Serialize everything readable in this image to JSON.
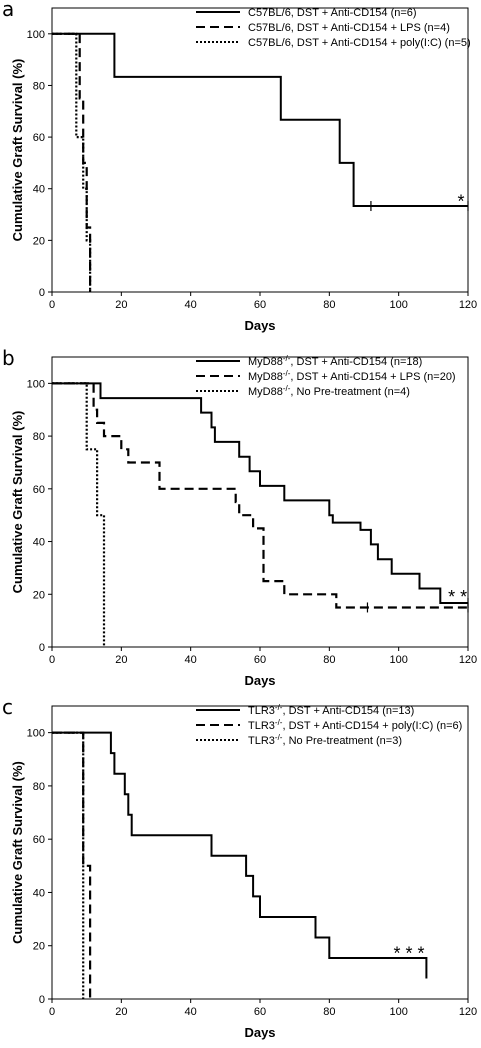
{
  "chart_data": [
    {
      "type": "line",
      "panel_label": "a",
      "xlabel": "Days",
      "ylabel": "Cumulative Graft Survival (%)",
      "xlim": [
        0,
        120
      ],
      "ylim": [
        0,
        110
      ],
      "xticks": [
        0,
        20,
        40,
        60,
        80,
        100,
        120
      ],
      "yticks": [
        0,
        20,
        40,
        60,
        80,
        100
      ],
      "x_tick_labels": [
        "0",
        "20",
        "40",
        "60",
        "80",
        "100",
        "120"
      ],
      "y_tick_labels": [
        "0",
        "20",
        "40",
        "60",
        "80",
        "100"
      ],
      "legend_position": "top-right",
      "annotation": {
        "text": "*",
        "x": 118,
        "y": 35
      },
      "series": [
        {
          "name": "C57BL/6, DST + Anti-CD154 (n=6)",
          "style": "solid",
          "steps": [
            [
              0,
              100
            ],
            [
              18,
              100
            ],
            [
              18,
              83.3
            ],
            [
              66,
              83.3
            ],
            [
              66,
              66.7
            ],
            [
              83,
              66.7
            ],
            [
              83,
              50
            ],
            [
              87,
              50
            ],
            [
              87,
              33.3
            ],
            [
              120,
              33.3
            ]
          ],
          "censored": [
            [
              92,
              33.3
            ],
            [
              120,
              33.3
            ]
          ]
        },
        {
          "name": "C57BL/6, DST + Anti-CD154 + LPS (n=4)",
          "style": "dashed",
          "steps": [
            [
              0,
              100
            ],
            [
              8,
              100
            ],
            [
              8,
              75
            ],
            [
              9,
              75
            ],
            [
              9,
              50
            ],
            [
              10,
              50
            ],
            [
              10,
              25
            ],
            [
              11,
              25
            ],
            [
              11,
              0
            ]
          ],
          "censored": []
        },
        {
          "name": "C57BL/6, DST + Anti-CD154 + poly(I:C) (n=5)",
          "style": "dotted",
          "steps": [
            [
              0,
              100
            ],
            [
              7,
              100
            ],
            [
              7,
              60
            ],
            [
              9,
              60
            ],
            [
              9,
              40
            ],
            [
              10,
              40
            ],
            [
              10,
              20
            ],
            [
              11,
              20
            ],
            [
              11,
              0
            ]
          ],
          "censored": []
        }
      ]
    },
    {
      "type": "line",
      "panel_label": "b",
      "xlabel": "Days",
      "ylabel": "Cumulative Graft Survival (%)",
      "xlim": [
        0,
        120
      ],
      "ylim": [
        0,
        110
      ],
      "xticks": [
        0,
        20,
        40,
        60,
        80,
        100,
        120
      ],
      "yticks": [
        0,
        20,
        40,
        60,
        80,
        100
      ],
      "x_tick_labels": [
        "0",
        "20",
        "40",
        "60",
        "80",
        "100",
        "120"
      ],
      "y_tick_labels": [
        "0",
        "20",
        "40",
        "60",
        "80",
        "100"
      ],
      "legend_position": "top-right",
      "annotation": {
        "text": "* *",
        "x": 117,
        "y": 19
      },
      "series": [
        {
          "name": "MyD88-/-, DST + Anti-CD154 (n=18)",
          "style": "solid",
          "steps": [
            [
              0,
              100
            ],
            [
              14,
              100
            ],
            [
              14,
              94.4
            ],
            [
              43,
              94.4
            ],
            [
              43,
              88.9
            ],
            [
              46,
              88.9
            ],
            [
              46,
              83.3
            ],
            [
              47,
              83.3
            ],
            [
              47,
              77.8
            ],
            [
              54,
              77.8
            ],
            [
              54,
              72.2
            ],
            [
              57,
              72.2
            ],
            [
              57,
              66.7
            ],
            [
              60,
              66.7
            ],
            [
              60,
              61.1
            ],
            [
              67,
              61.1
            ],
            [
              67,
              55.6
            ],
            [
              80,
              55.6
            ],
            [
              80,
              50
            ],
            [
              81,
              50
            ],
            [
              81,
              47.2
            ],
            [
              89,
              47.2
            ],
            [
              89,
              44.4
            ],
            [
              92,
              44.4
            ],
            [
              92,
              38.9
            ],
            [
              94,
              38.9
            ],
            [
              94,
              33.3
            ],
            [
              98,
              33.3
            ],
            [
              98,
              27.8
            ],
            [
              106,
              27.8
            ],
            [
              106,
              22.2
            ],
            [
              112,
              22.2
            ],
            [
              112,
              16.7
            ],
            [
              120,
              16.7
            ]
          ],
          "censored": [
            [
              120,
              16.7
            ]
          ]
        },
        {
          "name": "MyD88-/-, DST + Anti-CD154 + LPS (n=20)",
          "style": "dashed",
          "steps": [
            [
              0,
              100
            ],
            [
              12,
              100
            ],
            [
              12,
              90
            ],
            [
              13,
              90
            ],
            [
              13,
              85
            ],
            [
              15,
              85
            ],
            [
              15,
              80
            ],
            [
              20,
              80
            ],
            [
              20,
              75
            ],
            [
              22,
              75
            ],
            [
              22,
              70
            ],
            [
              31,
              70
            ],
            [
              31,
              60
            ],
            [
              53,
              60
            ],
            [
              53,
              55
            ],
            [
              54,
              55
            ],
            [
              54,
              50
            ],
            [
              58,
              50
            ],
            [
              58,
              45
            ],
            [
              61,
              45
            ],
            [
              61,
              25
            ],
            [
              67,
              25
            ],
            [
              67,
              20
            ],
            [
              82,
              20
            ],
            [
              82,
              15
            ],
            [
              120,
              15
            ]
          ],
          "censored": [
            [
              91,
              15
            ],
            [
              120,
              15
            ]
          ]
        },
        {
          "name": "MyD88-/-, No Pre-treatment (n=4)",
          "style": "dotted",
          "steps": [
            [
              0,
              100
            ],
            [
              10,
              100
            ],
            [
              10,
              75
            ],
            [
              13,
              75
            ],
            [
              13,
              50
            ],
            [
              15,
              50
            ],
            [
              15,
              0
            ]
          ],
          "censored": []
        }
      ]
    },
    {
      "type": "line",
      "panel_label": "c",
      "xlabel": "Days",
      "ylabel": "Cumulative Graft Survival (%)",
      "xlim": [
        0,
        120
      ],
      "ylim": [
        0,
        110
      ],
      "xticks": [
        0,
        20,
        40,
        60,
        80,
        100,
        120
      ],
      "yticks": [
        0,
        20,
        40,
        60,
        80,
        100
      ],
      "x_tick_labels": [
        "0",
        "20",
        "40",
        "60",
        "80",
        "100",
        "120"
      ],
      "y_tick_labels": [
        "0",
        "20",
        "40",
        "60",
        "80",
        "100"
      ],
      "legend_position": "top-right",
      "annotation": {
        "text": "* * *",
        "x": 103,
        "y": 17
      },
      "series": [
        {
          "name": "TLR3-/-, DST + Anti-CD154 (n=13)",
          "style": "solid",
          "steps": [
            [
              0,
              100
            ],
            [
              17,
              100
            ],
            [
              17,
              92.3
            ],
            [
              18,
              92.3
            ],
            [
              18,
              84.6
            ],
            [
              21,
              84.6
            ],
            [
              21,
              76.9
            ],
            [
              22,
              76.9
            ],
            [
              22,
              69.2
            ],
            [
              23,
              69.2
            ],
            [
              23,
              61.5
            ],
            [
              46,
              61.5
            ],
            [
              46,
              53.8
            ],
            [
              56,
              53.8
            ],
            [
              56,
              46.2
            ],
            [
              58,
              46.2
            ],
            [
              58,
              38.5
            ],
            [
              60,
              38.5
            ],
            [
              60,
              30.8
            ],
            [
              76,
              30.8
            ],
            [
              76,
              23.1
            ],
            [
              80,
              23.1
            ],
            [
              80,
              15.4
            ],
            [
              108,
              15.4
            ],
            [
              108,
              7.7
            ]
          ],
          "censored": []
        },
        {
          "name": "TLR3-/-, DST + Anti-CD154 + poly(I:C) (n=6)",
          "style": "dashed",
          "steps": [
            [
              0,
              100
            ],
            [
              9,
              100
            ],
            [
              9,
              50
            ],
            [
              11,
              50
            ],
            [
              11,
              0
            ]
          ],
          "censored": []
        },
        {
          "name": "TLR3-/-, No Pre-treatment (n=3)",
          "style": "dotted",
          "steps": [
            [
              0,
              100
            ],
            [
              9,
              100
            ],
            [
              9,
              0
            ]
          ],
          "censored": []
        }
      ]
    }
  ]
}
